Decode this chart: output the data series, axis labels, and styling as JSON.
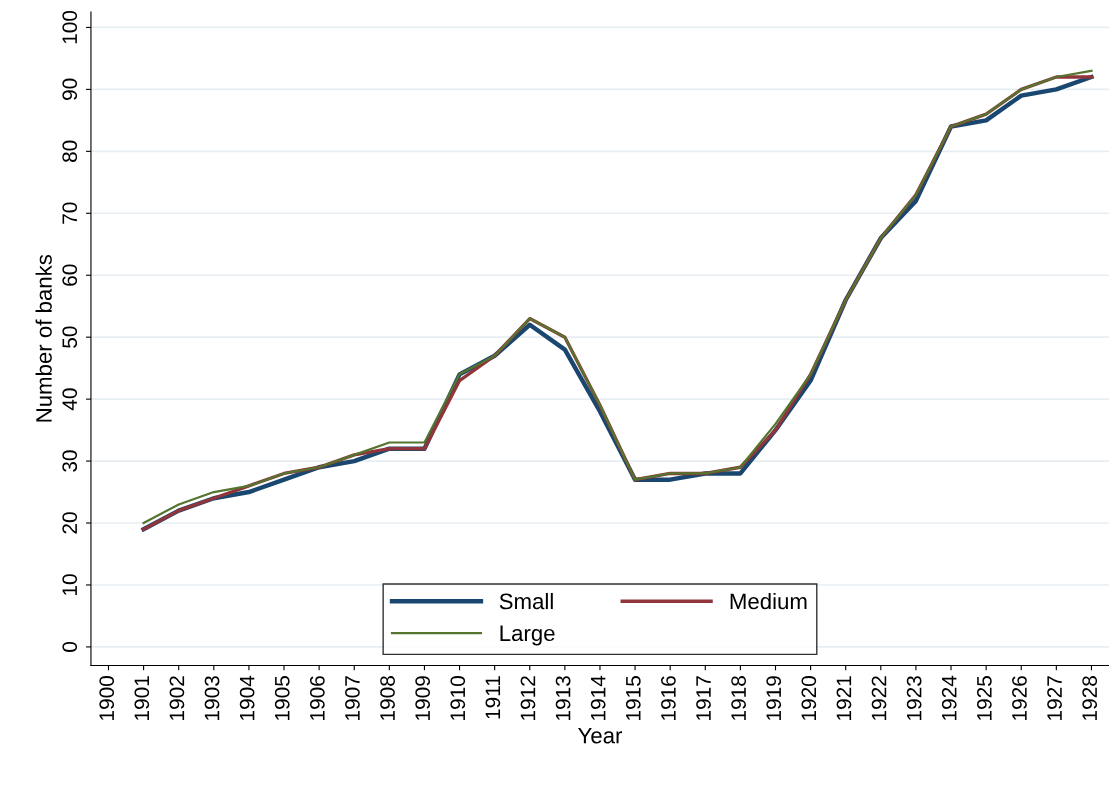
{
  "chart_data": {
    "type": "line",
    "xlabel": "Year",
    "ylabel": "Number of banks",
    "x": [
      1901,
      1902,
      1903,
      1904,
      1905,
      1906,
      1907,
      1908,
      1909,
      1910,
      1911,
      1912,
      1913,
      1914,
      1915,
      1916,
      1917,
      1918,
      1919,
      1920,
      1921,
      1922,
      1923,
      1924,
      1925,
      1926,
      1927,
      1928
    ],
    "series": [
      {
        "name": "Small",
        "color": "#1a476f",
        "values": [
          19,
          22,
          24,
          25,
          27,
          29,
          30,
          32,
          32,
          44,
          47,
          52,
          48,
          38,
          27,
          27,
          28,
          28,
          35,
          43,
          56,
          66,
          72,
          84,
          85,
          89,
          90,
          92
        ]
      },
      {
        "name": "Medium",
        "color": "#90353b",
        "values": [
          19,
          22,
          24,
          26,
          28,
          29,
          31,
          32,
          32,
          43,
          47,
          53,
          50,
          39,
          27,
          28,
          28,
          29,
          35,
          44,
          56,
          66,
          73,
          84,
          86,
          90,
          92,
          92
        ]
      },
      {
        "name": "Large",
        "color": "#55752f",
        "values": [
          20,
          23,
          25,
          26,
          28,
          29,
          31,
          33,
          33,
          44,
          47,
          53,
          50,
          39,
          27,
          28,
          28,
          29,
          36,
          44,
          56,
          66,
          73,
          84,
          86,
          90,
          92,
          93
        ]
      }
    ],
    "xlim": [
      1899.5,
      1928.5
    ],
    "xticks": [
      1900,
      1901,
      1902,
      1903,
      1904,
      1905,
      1906,
      1907,
      1908,
      1909,
      1910,
      1911,
      1912,
      1913,
      1914,
      1915,
      1916,
      1917,
      1918,
      1919,
      1920,
      1921,
      1922,
      1923,
      1924,
      1925,
      1926,
      1927,
      1928
    ],
    "ylim": [
      -3,
      102.5
    ],
    "yticks": [
      0,
      10,
      20,
      30,
      40,
      50,
      60,
      70,
      80,
      90,
      100
    ],
    "grid": "y",
    "legend": "bottom",
    "marker": "none",
    "line_style": "solid"
  }
}
